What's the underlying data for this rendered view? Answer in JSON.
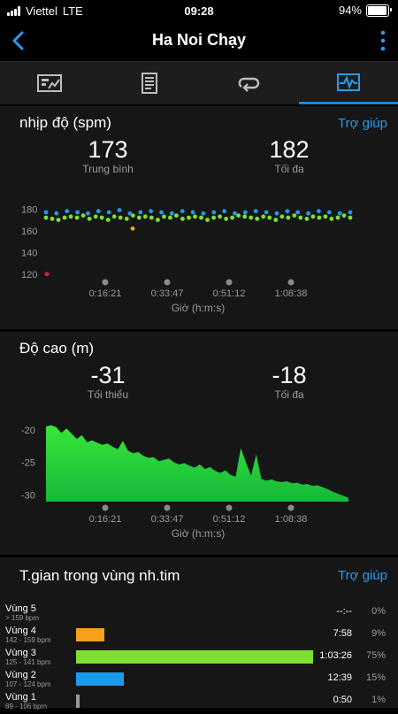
{
  "status": {
    "carrier": "Viettel",
    "network": "LTE",
    "time": "09:28",
    "battery": "94%",
    "battery_level": 0.94
  },
  "nav": {
    "title": "Ha Noi Chạy"
  },
  "tabs": [
    {
      "icon": "summary-chart-icon",
      "active": false
    },
    {
      "icon": "document-list-icon",
      "active": false
    },
    {
      "icon": "laps-loop-icon",
      "active": false
    },
    {
      "icon": "graphs-icon",
      "active": true
    }
  ],
  "cadence": {
    "title": "nhịp độ (spm)",
    "help": "Trợ giúp",
    "avg_value": "173",
    "avg_label": "Trung bình",
    "max_value": "182",
    "max_label": "Tối đa",
    "xlabel": "Giờ (h:m:s)",
    "xticks": [
      "0:16:21",
      "0:33:47",
      "0:51:12",
      "1:08:38"
    ],
    "yticks": [
      "180",
      "160",
      "140",
      "120"
    ]
  },
  "elevation": {
    "title": "Độ cao (m)",
    "min_value": "-31",
    "min_label": "Tối thiểu",
    "max_value": "-18",
    "max_label": "Tối đa",
    "xlabel": "Giờ (h:m:s)",
    "xticks": [
      "0:16:21",
      "0:33:47",
      "0:51:12",
      "1:08:38"
    ],
    "yticks": [
      "-20",
      "-25",
      "-30"
    ]
  },
  "zones": {
    "title": "T.gian trong vùng nh.tim",
    "help": "Trợ giúp",
    "rows": [
      {
        "name": "Vùng 5",
        "range": "> 159 bpm",
        "time": "--:--",
        "pct": "0%",
        "fraction": 0.0,
        "color": "#f7a01c"
      },
      {
        "name": "Vùng 4",
        "range": "142 - 159 bpm",
        "time": "7:58",
        "pct": "9%",
        "fraction": 0.09,
        "color": "#f7a01c"
      },
      {
        "name": "Vùng 3",
        "range": "125 - 141 bpm",
        "time": "1:03:26",
        "pct": "75%",
        "fraction": 0.75,
        "color": "#7ee02e"
      },
      {
        "name": "Vùng 2",
        "range": "107 - 124 bpm",
        "time": "12:39",
        "pct": "15%",
        "fraction": 0.15,
        "color": "#1c9bea"
      },
      {
        "name": "Vùng 1",
        "range": "89 - 106 bpm",
        "time": "0:50",
        "pct": "1%",
        "fraction": 0.01,
        "color": "#9a9a9a"
      }
    ]
  },
  "chart_data": [
    {
      "type": "scatter",
      "title": "nhịp độ (spm)",
      "xlabel": "Giờ (h:m:s)",
      "x_ticks": [
        "0:16:21",
        "0:33:47",
        "0:51:12",
        "1:08:38"
      ],
      "y_ticks": [
        180,
        160,
        140,
        120
      ],
      "ylim": [
        110,
        190
      ],
      "series": [
        {
          "color": "#7ee02e",
          "values": [
            172,
            171,
            170,
            172,
            173,
            172,
            174,
            171,
            173,
            172,
            170,
            173,
            172,
            171,
            174,
            172,
            173,
            172,
            170,
            173,
            172,
            174,
            171,
            172,
            173,
            172,
            170,
            172,
            173,
            171,
            172,
            174,
            173,
            172,
            171,
            173,
            172,
            170,
            173,
            172,
            174,
            172,
            171,
            173,
            172,
            173,
            171,
            172,
            174,
            172
          ]
        },
        {
          "color": "#1c9bea",
          "values": [
            177,
            176,
            178,
            177,
            176,
            178,
            177,
            179,
            176,
            177,
            178,
            177,
            176,
            178,
            177,
            176,
            177,
            178,
            176,
            177,
            178,
            177,
            176,
            178,
            177,
            176,
            178,
            177,
            176,
            177
          ]
        },
        {
          "color": "#f7a01c",
          "values": [
            162
          ]
        },
        {
          "color": "#e8202a",
          "values": [
            120
          ]
        }
      ]
    },
    {
      "type": "area",
      "title": "Độ cao (m)",
      "xlabel": "Giờ (h:m:s)",
      "x_ticks": [
        "0:16:21",
        "0:33:47",
        "0:51:12",
        "1:08:38"
      ],
      "y_ticks": [
        -20,
        -25,
        -30
      ],
      "ylim": [
        -31,
        -18
      ],
      "values": [
        -19.5,
        -19.3,
        -19.6,
        -20.5,
        -19.8,
        -20.6,
        -21.4,
        -20.8,
        -21.9,
        -21.6,
        -22.0,
        -22.3,
        -22.1,
        -22.6,
        -23.0,
        -21.7,
        -23.2,
        -23.6,
        -23.4,
        -24.0,
        -24.3,
        -24.2,
        -24.8,
        -24.6,
        -24.4,
        -25.0,
        -25.3,
        -25.1,
        -25.5,
        -25.8,
        -25.3,
        -26.0,
        -25.7,
        -26.3,
        -26.6,
        -26.2,
        -26.9,
        -27.2,
        -22.8,
        -25.0,
        -27.0,
        -23.8,
        -27.5,
        -27.8,
        -27.6,
        -27.9,
        -28.0,
        -27.9,
        -28.2,
        -28.1,
        -28.4,
        -28.3,
        -28.6,
        -28.5,
        -28.8,
        -29.1,
        -29.5,
        -29.8,
        -30.1,
        -30.4
      ]
    }
  ]
}
